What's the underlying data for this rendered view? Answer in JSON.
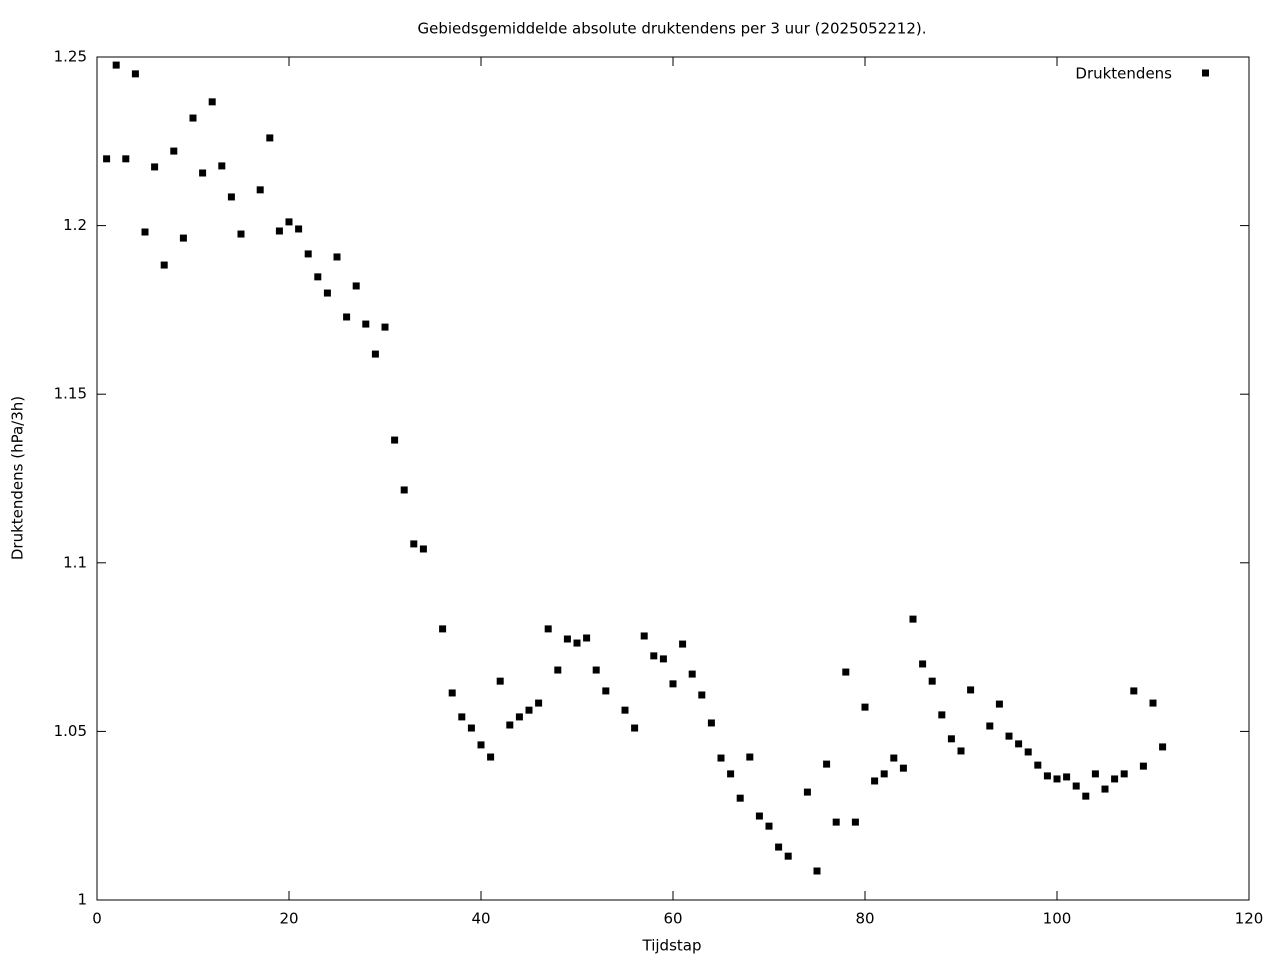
{
  "chart_data": {
    "type": "scatter",
    "title": "Gebiedsgemiddelde absolute druktendens per 3 uur (2025052212).",
    "x_label": "Tijdstap",
    "y_label": "Druktendens (hPa/3h)",
    "legend_position": "top-right",
    "xlim": [
      0,
      120
    ],
    "xticks": [
      0,
      20,
      40,
      60,
      80,
      100,
      120
    ],
    "ylim": [
      1,
      1.25
    ],
    "yticks": [
      1,
      1.05,
      1.1,
      1.15,
      1.2,
      1.25
    ],
    "series": [
      {
        "name": "Druktendens",
        "color": "#000000",
        "x": [
          1,
          2,
          3,
          4,
          5,
          6,
          7,
          8,
          9,
          10,
          11,
          12,
          13,
          14,
          15,
          17,
          18,
          19,
          20,
          21,
          22,
          23,
          24,
          25,
          26,
          27,
          28,
          29,
          30,
          31,
          32,
          33,
          34,
          36,
          37,
          38,
          39,
          40,
          41,
          42,
          43,
          44,
          45,
          46,
          47,
          48,
          49,
          50,
          51,
          52,
          53,
          55,
          56,
          57,
          58,
          59,
          60,
          61,
          62,
          63,
          64,
          65,
          66,
          67,
          68,
          69,
          70,
          71,
          72,
          74,
          75,
          76,
          77,
          78,
          79,
          80,
          81,
          82,
          83,
          84,
          85,
          86,
          87,
          88,
          89,
          90,
          91,
          93,
          94,
          95,
          96,
          97,
          98,
          99,
          100,
          101,
          102,
          103,
          104,
          105,
          106,
          107,
          108,
          109,
          110,
          111
        ],
        "values": [
          1.2198,
          1.2476,
          1.2198,
          1.245,
          1.1981,
          1.2174,
          1.1883,
          1.2221,
          1.1963,
          1.2319,
          1.2156,
          1.2367,
          1.2177,
          1.2085,
          1.1975,
          1.2106,
          1.226,
          1.1984,
          1.2011,
          1.199,
          1.1916,
          1.1848,
          1.18,
          1.1907,
          1.1729,
          1.1821,
          1.1708,
          1.1619,
          1.1699,
          1.1364,
          1.1216,
          1.1056,
          1.1041,
          1.0804,
          1.0614,
          1.0543,
          1.051,
          1.046,
          1.0424,
          1.0649,
          1.0519,
          1.0543,
          1.0563,
          1.0584,
          1.0804,
          1.0682,
          1.0774,
          1.0762,
          1.0777,
          1.0682,
          1.062,
          1.0563,
          1.051,
          1.0783,
          1.0724,
          1.0715,
          1.0641,
          1.0759,
          1.067,
          1.0608,
          1.0525,
          1.0421,
          1.0374,
          1.0302,
          1.0424,
          1.0249,
          1.0219,
          1.0157,
          1.013,
          1.032,
          1.0086,
          1.0403,
          1.0231,
          1.0676,
          1.0231,
          1.0572,
          1.0353,
          1.0374,
          1.0421,
          1.0391,
          1.0833,
          1.07,
          1.0649,
          1.0549,
          1.0478,
          1.0442,
          1.0623,
          1.0516,
          1.0581,
          1.0486,
          1.0463,
          1.0439,
          1.04,
          1.0368,
          1.0359,
          1.0365,
          1.0338,
          1.0308,
          1.0374,
          1.0329,
          1.0359,
          1.0374,
          1.062,
          1.0397,
          1.0584,
          1.0454
        ]
      }
    ]
  }
}
